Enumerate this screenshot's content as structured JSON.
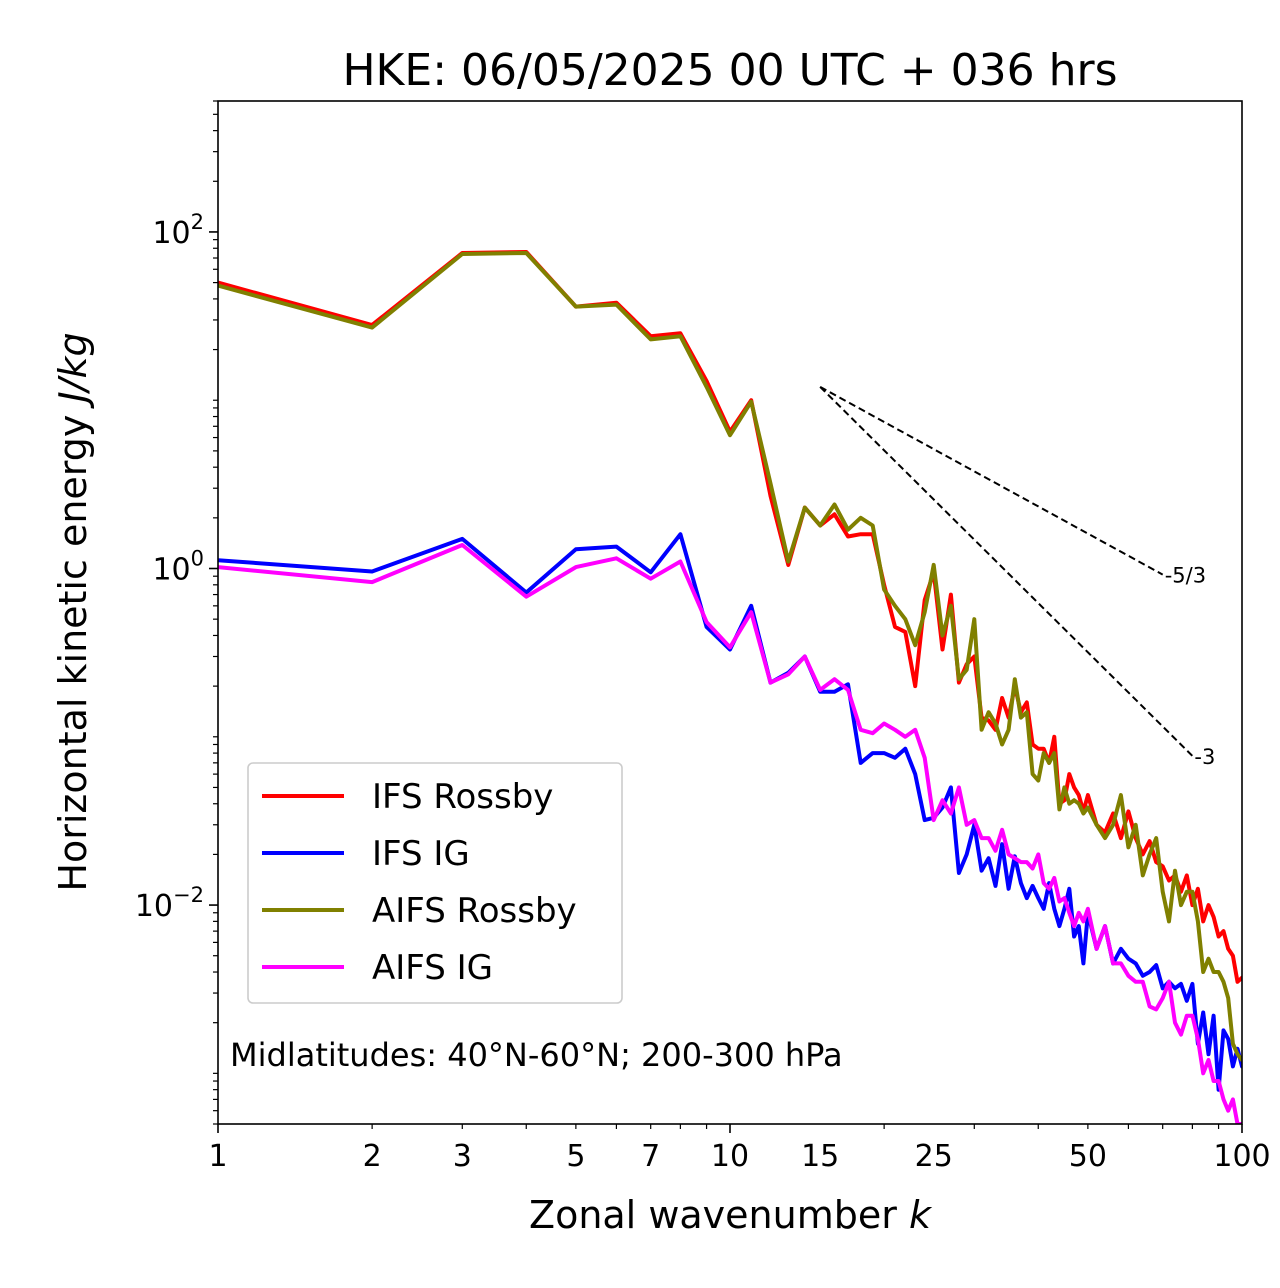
{
  "chart_data": {
    "type": "line",
    "title": "HKE: 06/05/2025 00 UTC + 036 hrs",
    "xlabel": "Zonal wavenumber",
    "xlabel_var": "k",
    "ylabel": "Horizontal kinetic energy",
    "ylabel_unit": "J/kg",
    "xscale": "log",
    "yscale": "log",
    "xlim": [
      1,
      100
    ],
    "ylim": [
      0.0005,
      600
    ],
    "xticks": [
      1,
      2,
      3,
      5,
      7,
      10,
      15,
      25,
      50,
      100
    ],
    "xtick_labels": [
      "1",
      "2",
      "3",
      "5",
      "7",
      "10",
      "15",
      "25",
      "50",
      "100"
    ],
    "yticks": [
      {
        "value": 100,
        "base": "10",
        "exp": "2"
      },
      {
        "value": 1,
        "base": "10",
        "exp": "0"
      },
      {
        "value": 0.01,
        "base": "10",
        "exp": "−2"
      }
    ],
    "grid": false,
    "legend_position": "lower-left",
    "annotation": "Midlatitudes: 40°N-60°N; 200-300 hPa",
    "slope_lines": [
      {
        "label": "-5/3",
        "x": [
          15,
          70
        ],
        "y": [
          12,
          0.92
        ]
      },
      {
        "label": "-3",
        "x": [
          15,
          80
        ],
        "y": [
          12,
          0.077
        ]
      }
    ],
    "series": [
      {
        "name": "IFS Rossby",
        "color": "#ff0000",
        "x": [
          1,
          2,
          3,
          4,
          5,
          6,
          7,
          8,
          9,
          10,
          11,
          12,
          13,
          14,
          15,
          16,
          17,
          18,
          19,
          20,
          21,
          22,
          23,
          24,
          25,
          26,
          27,
          28,
          29,
          30,
          31,
          32,
          33,
          34,
          35,
          36,
          37,
          38,
          39,
          40,
          41,
          42,
          43,
          44,
          45,
          46,
          47,
          48,
          49,
          50,
          52,
          54,
          56,
          58,
          60,
          62,
          64,
          66,
          68,
          70,
          72,
          74,
          76,
          78,
          80,
          82,
          84,
          86,
          88,
          90,
          92,
          94,
          96,
          98,
          100
        ],
        "y": [
          50,
          28,
          75,
          76,
          36,
          38,
          24,
          25,
          13,
          6.5,
          10,
          2.7,
          1.05,
          2.3,
          1.8,
          2.1,
          1.55,
          1.6,
          1.6,
          0.8,
          0.45,
          0.42,
          0.2,
          0.65,
          0.95,
          0.33,
          0.7,
          0.21,
          0.27,
          0.3,
          0.13,
          0.125,
          0.11,
          0.17,
          0.13,
          0.2,
          0.14,
          0.16,
          0.09,
          0.085,
          0.085,
          0.07,
          0.1,
          0.04,
          0.042,
          0.06,
          0.05,
          0.045,
          0.036,
          0.045,
          0.03,
          0.027,
          0.035,
          0.025,
          0.036,
          0.025,
          0.02,
          0.024,
          0.018,
          0.017,
          0.014,
          0.015,
          0.012,
          0.015,
          0.01,
          0.0125,
          0.008,
          0.01,
          0.0085,
          0.0065,
          0.007,
          0.0055,
          0.005,
          0.0035,
          0.0037
        ]
      },
      {
        "name": "IFS IG",
        "color": "#0000ff",
        "x": [
          1,
          2,
          3,
          4,
          5,
          6,
          7,
          8,
          9,
          10,
          11,
          12,
          13,
          14,
          15,
          16,
          17,
          18,
          19,
          20,
          21,
          22,
          23,
          24,
          25,
          26,
          27,
          28,
          29,
          30,
          31,
          32,
          33,
          34,
          35,
          36,
          37,
          38,
          39,
          40,
          41,
          42,
          43,
          44,
          45,
          46,
          47,
          48,
          49,
          50,
          52,
          54,
          56,
          58,
          60,
          62,
          64,
          66,
          68,
          70,
          72,
          74,
          76,
          78,
          80,
          82,
          84,
          86,
          88,
          90,
          92,
          94,
          96,
          98,
          100
        ],
        "y": [
          1.12,
          0.96,
          1.5,
          0.72,
          1.3,
          1.35,
          0.95,
          1.6,
          0.45,
          0.33,
          0.6,
          0.21,
          0.24,
          0.3,
          0.185,
          0.185,
          0.205,
          0.07,
          0.08,
          0.08,
          0.075,
          0.085,
          0.06,
          0.032,
          0.033,
          0.038,
          0.05,
          0.0155,
          0.02,
          0.03,
          0.016,
          0.019,
          0.013,
          0.023,
          0.0125,
          0.0195,
          0.0135,
          0.011,
          0.013,
          0.011,
          0.0095,
          0.0135,
          0.0095,
          0.0075,
          0.0095,
          0.0125,
          0.0065,
          0.0075,
          0.0045,
          0.009,
          0.0055,
          0.0075,
          0.0045,
          0.0055,
          0.0048,
          0.0045,
          0.0038,
          0.004,
          0.0044,
          0.0032,
          0.0035,
          0.0032,
          0.0034,
          0.0027,
          0.0034,
          0.0015,
          0.0023,
          0.0013,
          0.0022,
          0.0008,
          0.0018,
          0.0016,
          0.0011,
          0.0014,
          0.0011
        ]
      },
      {
        "name": "AIFS Rossby",
        "color": "#808000",
        "x": [
          1,
          2,
          3,
          4,
          5,
          6,
          7,
          8,
          9,
          10,
          11,
          12,
          13,
          14,
          15,
          16,
          17,
          18,
          19,
          20,
          21,
          22,
          23,
          24,
          25,
          26,
          27,
          28,
          29,
          30,
          31,
          32,
          33,
          34,
          35,
          36,
          37,
          38,
          39,
          40,
          41,
          42,
          43,
          44,
          45,
          46,
          47,
          48,
          49,
          50,
          52,
          54,
          56,
          58,
          60,
          62,
          64,
          66,
          68,
          70,
          72,
          74,
          76,
          78,
          80,
          82,
          84,
          86,
          88,
          90,
          92,
          94,
          96,
          98,
          100
        ],
        "y": [
          48,
          27,
          74,
          75,
          36,
          37,
          23,
          24,
          12,
          6.2,
          9.8,
          3.2,
          1.1,
          2.3,
          1.8,
          2.4,
          1.7,
          2.0,
          1.8,
          0.75,
          0.6,
          0.5,
          0.35,
          0.55,
          1.05,
          0.4,
          0.6,
          0.22,
          0.25,
          0.5,
          0.11,
          0.14,
          0.12,
          0.09,
          0.11,
          0.22,
          0.13,
          0.14,
          0.06,
          0.055,
          0.08,
          0.07,
          0.08,
          0.037,
          0.05,
          0.04,
          0.042,
          0.04,
          0.035,
          0.038,
          0.03,
          0.025,
          0.03,
          0.045,
          0.022,
          0.03,
          0.015,
          0.02,
          0.025,
          0.012,
          0.008,
          0.016,
          0.01,
          0.012,
          0.012,
          0.008,
          0.004,
          0.0048,
          0.004,
          0.004,
          0.0035,
          0.0028,
          0.0015,
          0.0013,
          0.0012
        ]
      },
      {
        "name": "AIFS IG",
        "color": "#ff00ff",
        "x": [
          1,
          2,
          3,
          4,
          5,
          6,
          7,
          8,
          9,
          10,
          11,
          12,
          13,
          14,
          15,
          16,
          17,
          18,
          19,
          20,
          21,
          22,
          23,
          24,
          25,
          26,
          27,
          28,
          29,
          30,
          31,
          32,
          33,
          34,
          35,
          36,
          37,
          38,
          39,
          40,
          41,
          42,
          43,
          44,
          45,
          46,
          47,
          48,
          49,
          50,
          52,
          54,
          56,
          58,
          60,
          62,
          64,
          66,
          68,
          70,
          72,
          74,
          76,
          78,
          80,
          82,
          84,
          86,
          88,
          90,
          92,
          94,
          96,
          98,
          100
        ],
        "y": [
          1.02,
          0.83,
          1.38,
          0.68,
          1.02,
          1.15,
          0.87,
          1.1,
          0.48,
          0.34,
          0.55,
          0.21,
          0.235,
          0.3,
          0.19,
          0.22,
          0.19,
          0.11,
          0.105,
          0.12,
          0.11,
          0.1,
          0.11,
          0.075,
          0.032,
          0.042,
          0.035,
          0.05,
          0.03,
          0.032,
          0.025,
          0.025,
          0.021,
          0.028,
          0.02,
          0.019,
          0.018,
          0.018,
          0.0165,
          0.02,
          0.0135,
          0.0125,
          0.0145,
          0.0105,
          0.011,
          0.009,
          0.0075,
          0.009,
          0.008,
          0.0095,
          0.0055,
          0.0075,
          0.0045,
          0.0045,
          0.0038,
          0.0035,
          0.0035,
          0.0025,
          0.0024,
          0.0028,
          0.0035,
          0.002,
          0.0017,
          0.0022,
          0.0022,
          0.0016,
          0.001,
          0.0012,
          0.0009,
          0.0009,
          0.0007,
          0.0006,
          0.0007,
          0.0005,
          0.0005
        ]
      }
    ]
  }
}
